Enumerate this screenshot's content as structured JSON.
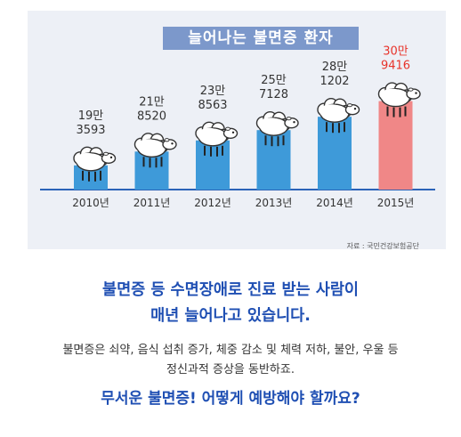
{
  "chart_data": {
    "type": "bar",
    "title": "늘어나는 불면증 환자",
    "categories": [
      "2010년",
      "2011년",
      "2012년",
      "2013년",
      "2014년",
      "2015년"
    ],
    "values": [
      193593,
      218520,
      238563,
      257128,
      281202,
      309416
    ],
    "value_labels": [
      [
        "19만",
        "3593"
      ],
      [
        "21만",
        "8520"
      ],
      [
        "23만",
        "8563"
      ],
      [
        "25만",
        "7128"
      ],
      [
        "28만",
        "1202"
      ],
      [
        "30만",
        "9416"
      ]
    ],
    "highlight_index": 5,
    "ylim": [
      150000,
      320000
    ],
    "grid": false,
    "legend": "none",
    "source": "자료 : 국민건강보험공단"
  },
  "colors": {
    "bar": "#3e9ad9",
    "highlight_bar": "#f08787",
    "highlight_label": "#e8332a",
    "label": "#333333",
    "baseline": "#2b63b8",
    "title_bg": "#7c98cb"
  },
  "icons": {
    "bar_top": "sheep-icon"
  },
  "text": {
    "headline_1": "불면증 등 수면장애로 진료 받는 사람이",
    "headline_2": "매년 늘어나고 있습니다.",
    "body_1": "불면증은 쇠약, 음식 섭취 증가, 체중 감소 및 체력 저하, 불안, 우울 등",
    "body_2": "정신과적 증상을 동반하죠.",
    "question": "무서운 불면증! 어떻게 예방해야 할까요?"
  }
}
